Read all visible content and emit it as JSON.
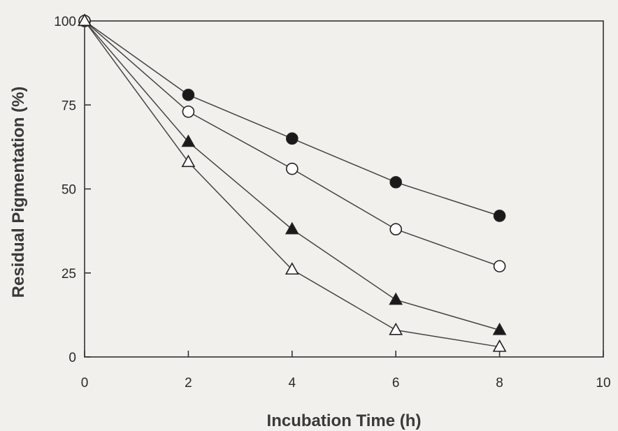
{
  "chart_data": {
    "type": "line",
    "xlabel": "Incubation Time (h)",
    "ylabel": "Residual Pigmentation (%)",
    "xlim": [
      0,
      10
    ],
    "ylim": [
      0,
      100
    ],
    "xticks": [
      0,
      2,
      4,
      6,
      8,
      10
    ],
    "yticks": [
      0,
      25,
      50,
      75,
      100
    ],
    "grid": false,
    "x": [
      0,
      2,
      4,
      6,
      8
    ],
    "series": [
      {
        "marker": "filled-circle",
        "values": [
          100,
          78,
          65,
          52,
          42
        ]
      },
      {
        "marker": "open-circle",
        "values": [
          100,
          73,
          56,
          38,
          27
        ]
      },
      {
        "marker": "filled-triangle",
        "values": [
          100,
          64,
          38,
          17,
          8
        ]
      },
      {
        "marker": "open-triangle",
        "values": [
          100,
          58,
          26,
          8,
          3
        ]
      }
    ]
  }
}
